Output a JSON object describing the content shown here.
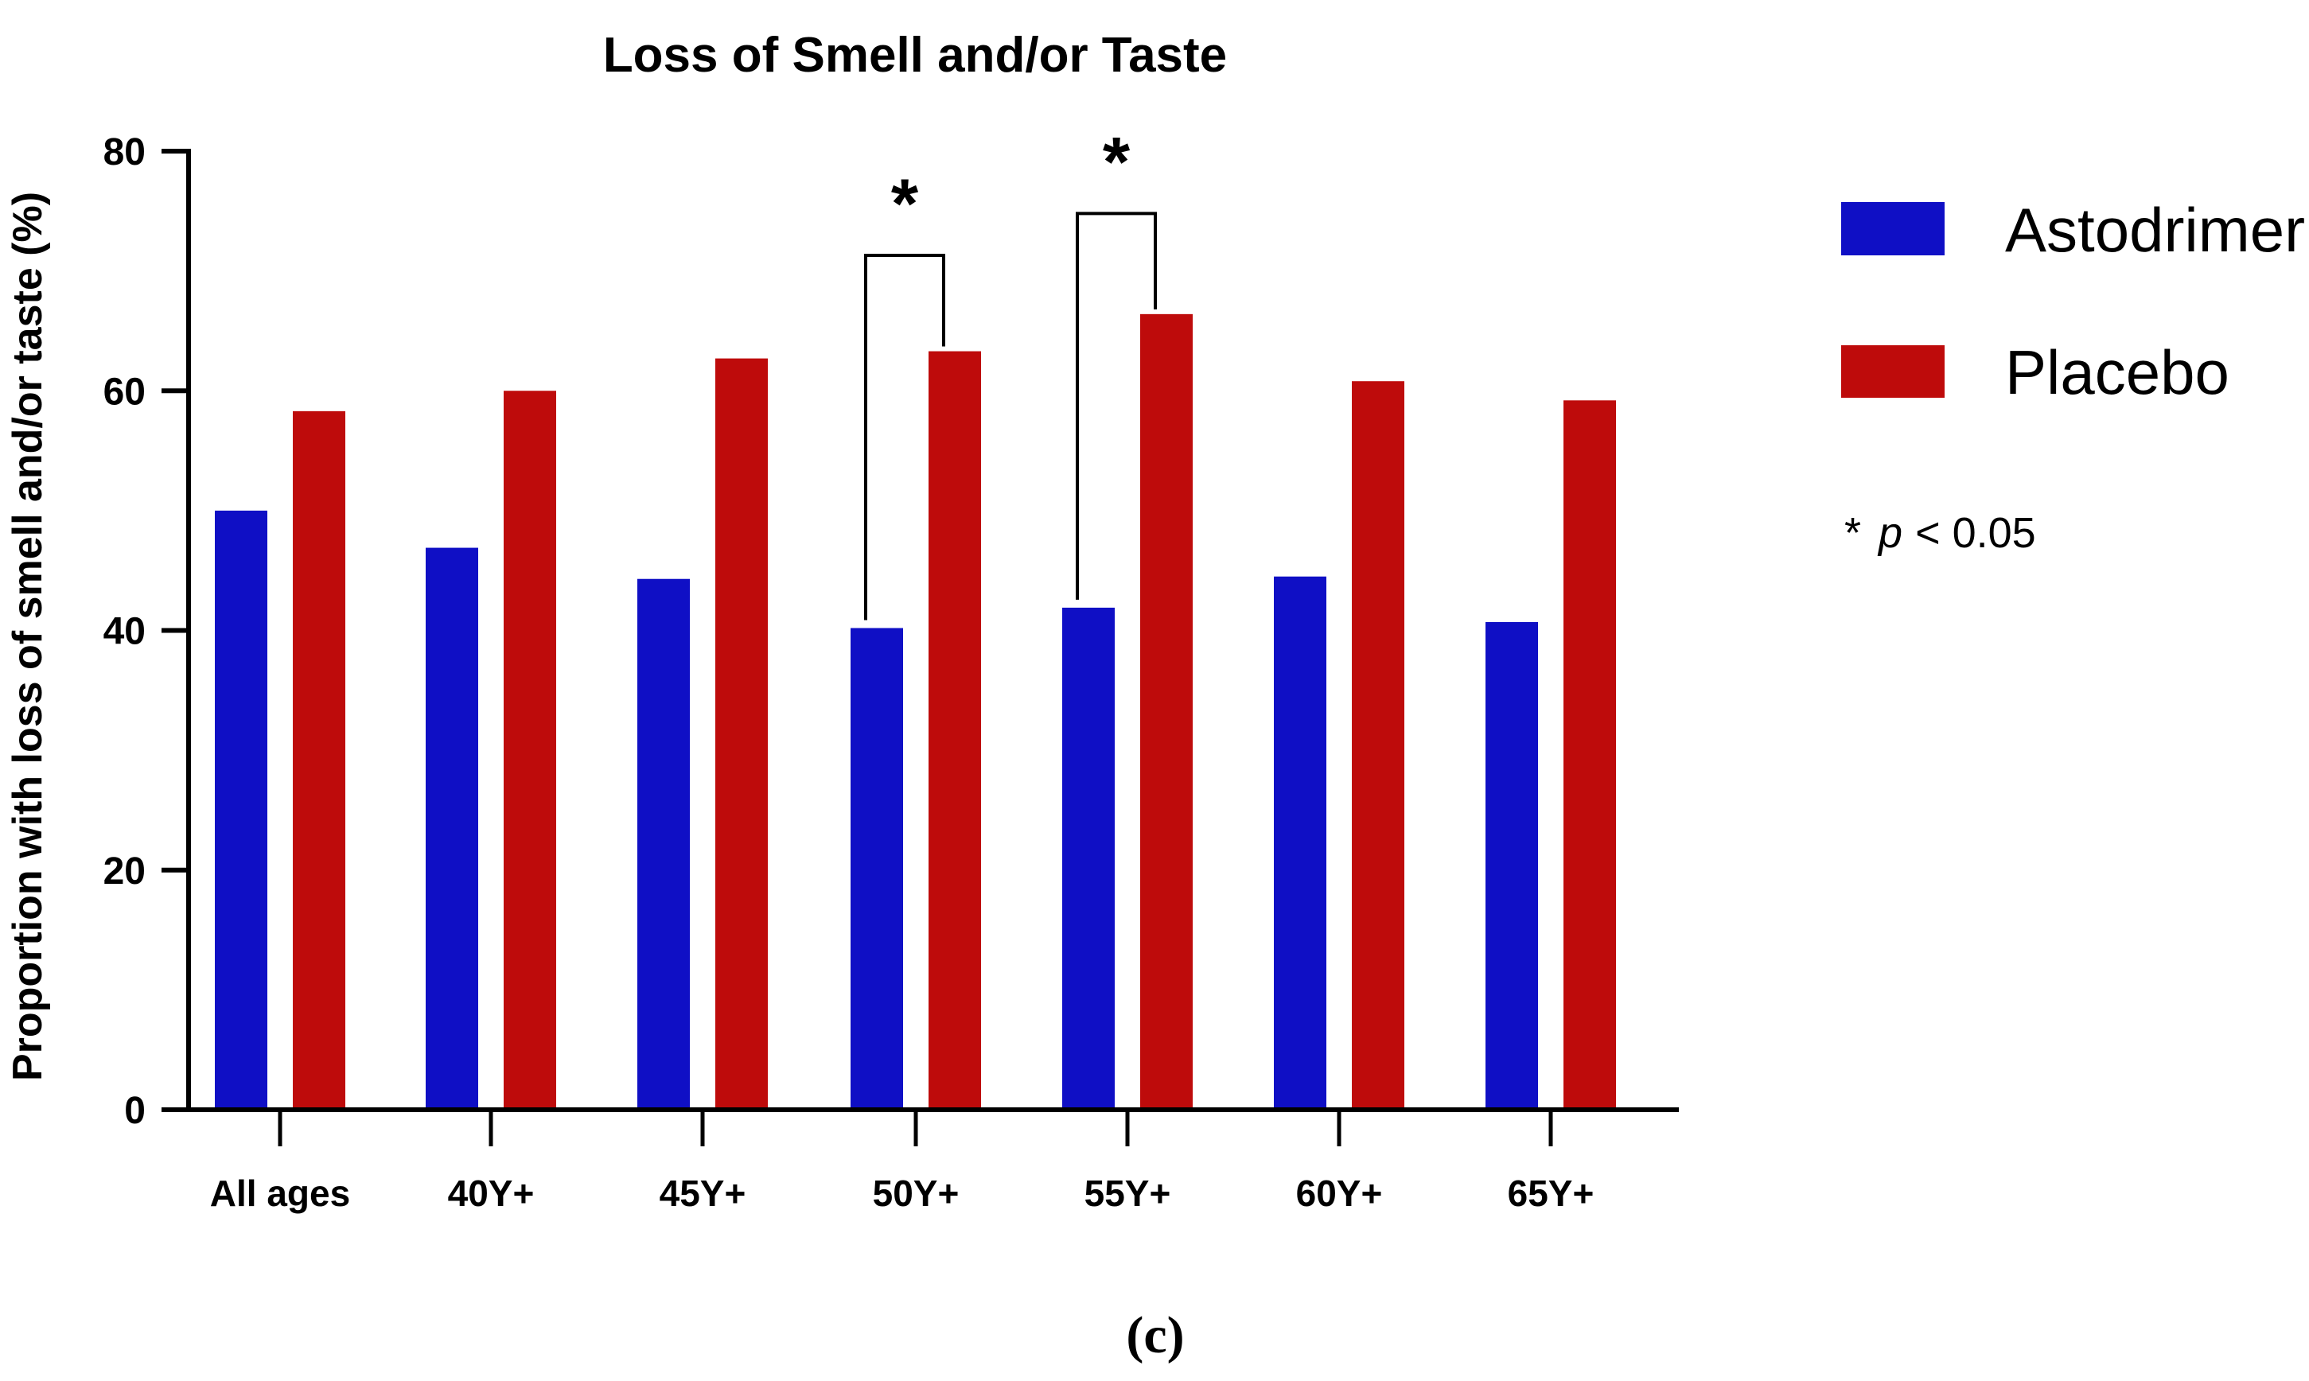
{
  "title": "Loss of Smell and/or Taste",
  "y_axis_label": "Proportion with loss of smell and/or taste (%)",
  "caption": "(c)",
  "legend": {
    "items": [
      {
        "label": "Astodrimer",
        "color": "#0F0FC5"
      },
      {
        "label": "Placebo",
        "color": "#BE0B0B"
      }
    ]
  },
  "note": {
    "star": "*",
    "p_symbol": "p",
    "comparison": "< 0.05"
  },
  "chart_data": {
    "type": "bar",
    "title": "Loss of Smell and/or Taste",
    "xlabel": "",
    "ylabel": "Proportion with loss of smell and/or taste (%)",
    "ylim": [
      0,
      80
    ],
    "yticks": [
      0,
      20,
      40,
      60,
      80
    ],
    "grid": false,
    "legend_position": "right",
    "categories": [
      "All ages",
      "40Y+",
      "45Y+",
      "50Y+",
      "55Y+",
      "60Y+",
      "65Y+"
    ],
    "series": [
      {
        "name": "Astodrimer",
        "color": "#0F0FC5",
        "values": [
          50.0,
          46.9,
          44.3,
          40.2,
          41.9,
          44.5,
          40.7
        ]
      },
      {
        "name": "Placebo",
        "color": "#BE0B0B",
        "values": [
          58.3,
          60.0,
          62.7,
          63.3,
          66.4,
          60.8,
          59.2
        ]
      }
    ],
    "significance": [
      {
        "category": "50Y+",
        "category_index": 3,
        "label": "*",
        "note": "p < 0.05",
        "bracket_top_value": 71.3
      },
      {
        "category": "55Y+",
        "category_index": 4,
        "label": "*",
        "note": "p < 0.05",
        "bracket_top_value": 74.8
      }
    ]
  }
}
